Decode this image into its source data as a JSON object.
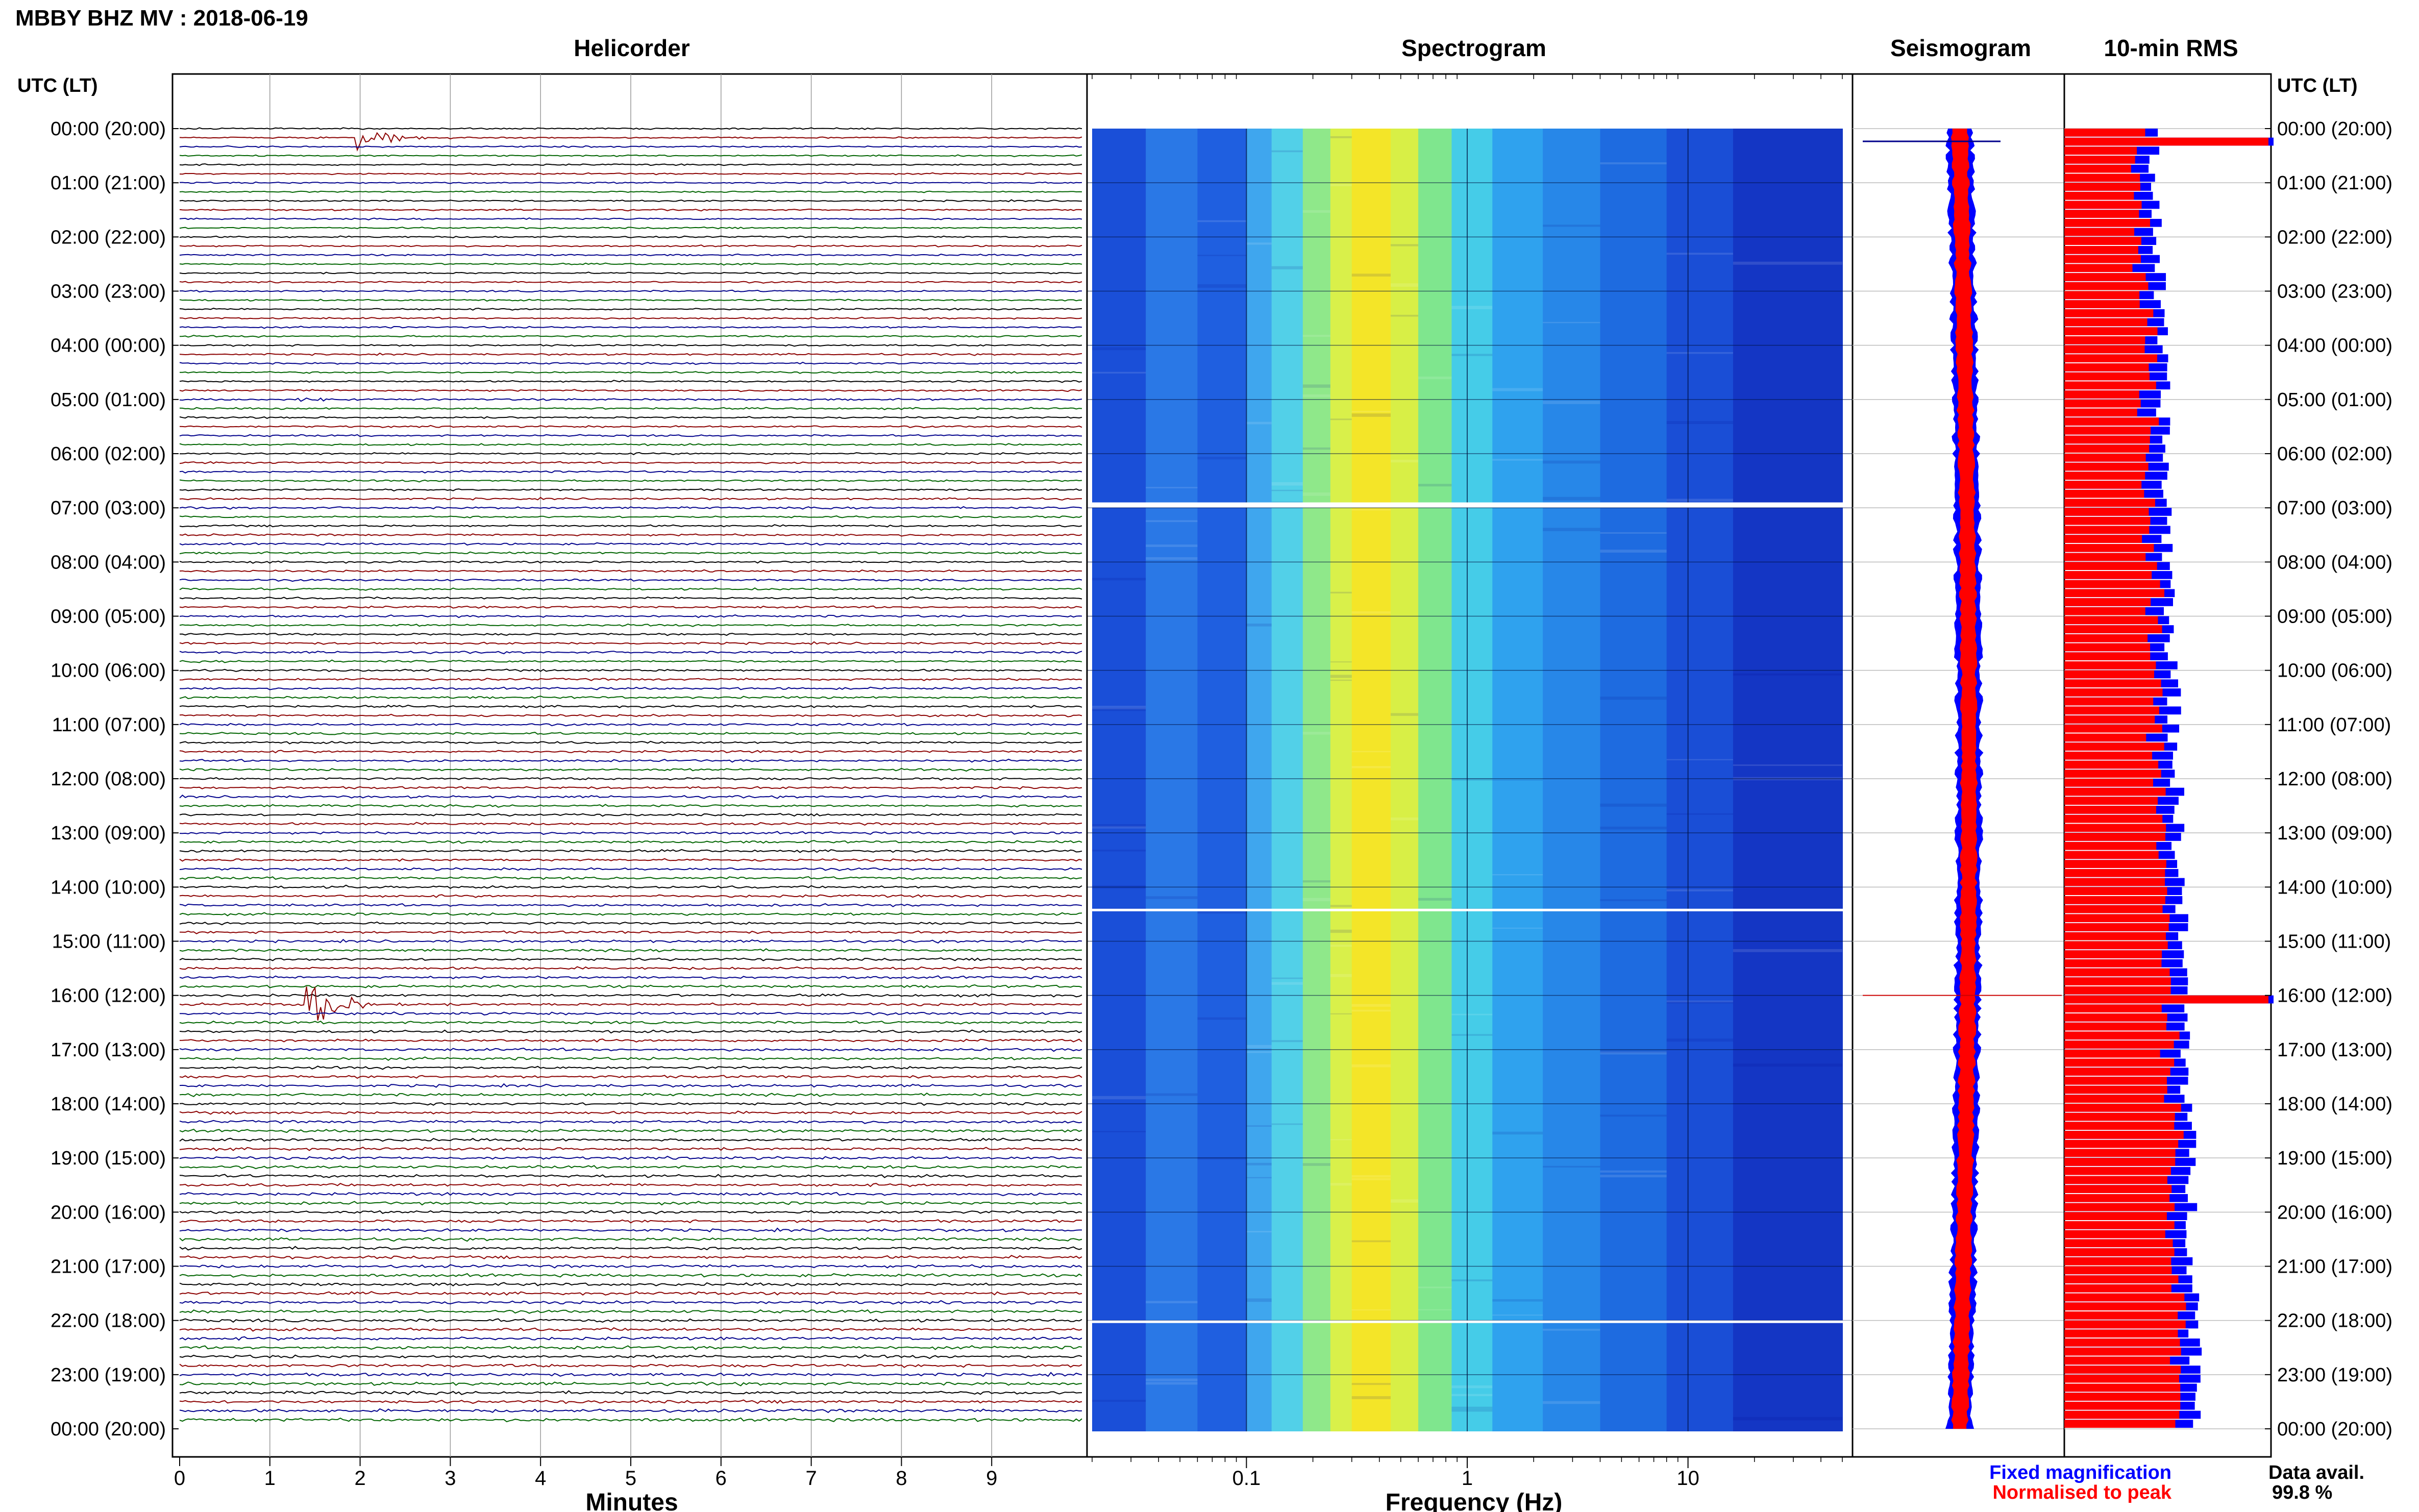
{
  "header": {
    "station_title": "MBBY BHZ MV : 2018-06-19",
    "utc_label": "UTC (LT)"
  },
  "colors": {
    "trace_cycle": [
      "#000000",
      "#8b0000",
      "#00008b",
      "#006400"
    ],
    "fixed": "#0000ff",
    "normalised": "#ff0000"
  },
  "chart_data": [
    {
      "type": "line",
      "title": "Helicorder",
      "xlabel": "Minutes",
      "ylabel": "UTC (LT)",
      "xlim": [
        0,
        10
      ],
      "x_ticks": [
        "0",
        "1",
        "2",
        "3",
        "4",
        "5",
        "6",
        "7",
        "8",
        "9"
      ],
      "y_ticks": [
        "00:00 (20:00)",
        "01:00 (21:00)",
        "02:00 (22:00)",
        "03:00 (23:00)",
        "04:00 (00:00)",
        "05:00 (01:00)",
        "06:00 (02:00)",
        "07:00 (03:00)",
        "08:00 (04:00)",
        "09:00 (05:00)",
        "10:00 (06:00)",
        "11:00 (07:00)",
        "12:00 (08:00)",
        "13:00 (09:00)",
        "14:00 (10:00)",
        "15:00 (11:00)",
        "16:00 (12:00)",
        "17:00 (13:00)",
        "18:00 (14:00)",
        "19:00 (15:00)",
        "20:00 (16:00)",
        "21:00 (17:00)",
        "22:00 (18:00)",
        "23:00 (19:00)",
        "00:00 (20:00)"
      ],
      "trace_count": 144,
      "events": [
        {
          "row": 1,
          "minute": 2.0,
          "amp": 3.2
        },
        {
          "row": 97,
          "minute": 1.45,
          "amp": 6.5
        },
        {
          "row": 30,
          "minute": 1.35,
          "amp": 0.6
        },
        {
          "row": 84,
          "minute": 1.8,
          "amp": 0.5
        }
      ]
    },
    {
      "type": "heatmap",
      "title": "Spectrogram",
      "xlabel": "Frequency (Hz)",
      "xscale": "log",
      "xlim": [
        0.02,
        50
      ],
      "x_ticks": [
        {
          "value": 0.1,
          "label": "0.1"
        },
        {
          "value": 1,
          "label": "1"
        },
        {
          "value": 10,
          "label": "10"
        }
      ],
      "gap_rows_hours": [
        6.9,
        14.4,
        22.0
      ]
    },
    {
      "type": "line",
      "title": "Seismogram",
      "series": [
        {
          "name": "Fixed magnification",
          "color": "#0000ff"
        },
        {
          "name": "Normalised to peak",
          "color": "#ff0000"
        }
      ]
    },
    {
      "type": "bar",
      "title": "10-min RMS",
      "categories_count": 144,
      "peaks": [
        {
          "row": 1,
          "value": 1.0
        },
        {
          "row": 96,
          "value": 1.0
        }
      ]
    }
  ],
  "footer": {
    "legend_fixed": "Fixed magnification",
    "legend_norm": "Normalised to peak",
    "data_avail_label": "Data avail.",
    "data_avail_value": "99.8 %"
  }
}
